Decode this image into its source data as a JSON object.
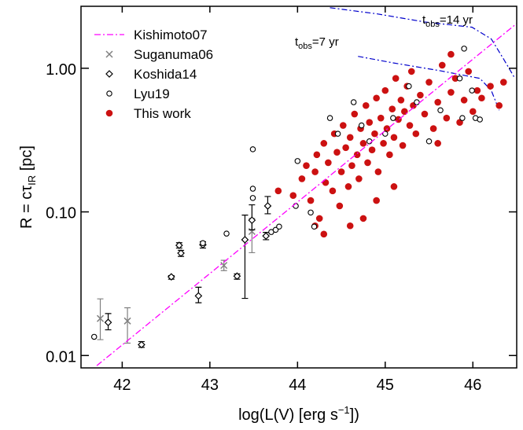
{
  "chart_data": {
    "type": "scatter",
    "xlabel": [
      "log(L(V) [erg s",
      "−1",
      "])"
    ],
    "ylabel": [
      "R = cτ",
      "IR",
      " [pc]"
    ],
    "xlim": [
      41.53,
      46.5
    ],
    "ylim": [
      0.0082,
      2.7
    ],
    "yscale": "log",
    "xticks": [
      42,
      43,
      44,
      45,
      46
    ],
    "yticks": [
      {
        "value": 0.01,
        "label": "0.01"
      },
      {
        "value": 0.1,
        "label": "0.10"
      },
      {
        "value": 1,
        "label": "1.00"
      }
    ],
    "legend": "upper left",
    "annotations": [
      {
        "parts": [
          "t",
          "obs",
          "=7 yr"
        ]
      },
      {
        "parts": [
          "t",
          "obs",
          "=14 yr"
        ]
      }
    ],
    "series": [
      {
        "name": "Kishimoto07",
        "marker": "line",
        "color": "#ff00ff",
        "x": [
          41.71,
          46.5
        ],
        "values": [
          0.0085,
          2.05
        ]
      },
      {
        "name": "Suganuma06",
        "marker": "x",
        "color": "#808080",
        "x": [
          41.75,
          42.06,
          43.16,
          43.48
        ],
        "values": [
          0.0181,
          0.0174,
          0.0424,
          0.073
        ],
        "lower": [
          0.0129,
          0.0122,
          0.039,
          0.052
        ],
        "upper": [
          0.0248,
          0.0215,
          0.046,
          0.09
        ]
      },
      {
        "name": "Koshida14",
        "marker": "diamond",
        "color": "#000000",
        "x": [
          41.84,
          42.22,
          42.56,
          42.65,
          42.67,
          42.87,
          42.92,
          43.31,
          43.48,
          43.66,
          43.64,
          43.4
        ],
        "values": [
          0.017,
          0.0119,
          0.0353,
          0.0585,
          0.0516,
          0.026,
          0.059,
          0.0357,
          0.0875,
          0.11,
          0.068,
          0.064
        ],
        "lower": [
          0.0151,
          0.0114,
          0.034,
          0.056,
          0.049,
          0.0233,
          0.056,
          0.034,
          0.075,
          0.097,
          0.064,
          0.025
        ],
        "upper": [
          0.0196,
          0.0125,
          0.036,
          0.061,
          0.054,
          0.0299,
          0.062,
          0.037,
          0.112,
          0.128,
          0.072,
          0.095
        ]
      },
      {
        "name": "Lyu19",
        "marker": "circle",
        "color": "#000000",
        "x": [
          41.68,
          42.92,
          43.19,
          43.49,
          43.49,
          43.49,
          43.7,
          43.75,
          43.79,
          43.98,
          44.0,
          44.15,
          44.19,
          44.37,
          44.46,
          44.64,
          44.73,
          44.82,
          45.0,
          45.09,
          45.27,
          45.36,
          45.5,
          45.63,
          45.85,
          45.9,
          45.99,
          46.03,
          46.08,
          45.88
        ],
        "values": [
          0.0135,
          0.0606,
          0.0706,
          0.273,
          0.145,
          0.125,
          0.0724,
          0.075,
          0.079,
          0.11,
          0.226,
          0.099,
          0.079,
          0.45,
          0.35,
          0.58,
          0.4,
          0.31,
          0.35,
          0.45,
          0.75,
          0.58,
          0.31,
          0.51,
          0.85,
          1.37,
          0.7,
          0.45,
          0.44,
          0.45
        ]
      },
      {
        "name": "This work",
        "marker": "dot",
        "color": "#cc1111",
        "x": [
          43.95,
          44.05,
          44.1,
          44.15,
          44.2,
          44.22,
          44.25,
          44.3,
          44.32,
          44.35,
          44.4,
          44.42,
          44.45,
          44.48,
          44.5,
          44.52,
          44.55,
          44.58,
          44.6,
          44.62,
          44.65,
          44.68,
          44.7,
          44.72,
          44.75,
          44.78,
          44.8,
          44.82,
          44.85,
          44.88,
          44.9,
          44.92,
          44.95,
          44.98,
          45.0,
          45.02,
          45.05,
          45.08,
          45.1,
          45.12,
          45.15,
          45.18,
          45.2,
          45.22,
          45.25,
          45.28,
          45.3,
          45.32,
          45.35,
          45.4,
          45.45,
          45.5,
          45.55,
          45.6,
          45.65,
          45.7,
          45.75,
          45.8,
          45.85,
          45.9,
          45.95,
          46.0,
          46.05,
          46.1,
          46.2,
          46.3,
          46.35,
          44.6,
          44.3,
          44.9,
          45.1,
          44.75,
          43.78,
          44.2,
          45.6,
          45.75
        ],
        "values": [
          0.13,
          0.17,
          0.21,
          0.12,
          0.19,
          0.25,
          0.09,
          0.3,
          0.16,
          0.22,
          0.14,
          0.35,
          0.26,
          0.11,
          0.19,
          0.4,
          0.28,
          0.15,
          0.33,
          0.21,
          0.48,
          0.25,
          0.17,
          0.38,
          0.3,
          0.55,
          0.22,
          0.42,
          0.27,
          0.35,
          0.62,
          0.19,
          0.45,
          0.3,
          0.7,
          0.38,
          0.25,
          0.52,
          0.33,
          0.85,
          0.44,
          0.6,
          0.29,
          0.5,
          0.75,
          0.4,
          0.95,
          0.55,
          0.35,
          0.65,
          0.48,
          0.8,
          0.38,
          0.58,
          1.05,
          0.45,
          0.68,
          0.85,
          0.42,
          0.6,
          0.95,
          0.5,
          0.7,
          0.62,
          0.75,
          0.55,
          0.8,
          0.08,
          0.07,
          0.12,
          0.15,
          0.09,
          0.14,
          0.08,
          0.3,
          1.25
        ]
      }
    ],
    "curves": [
      {
        "color": "#0000cc",
        "x": [
          44.69,
          45.09,
          45.63,
          46.08,
          46.21,
          46.3
        ],
        "values": [
          1.21,
          1.09,
          0.96,
          0.85,
          0.7,
          0.51
        ]
      },
      {
        "color": "#0000cc",
        "x": [
          44.37,
          44.91,
          45.45,
          45.99,
          46.21,
          46.35,
          46.48
        ],
        "values": [
          2.64,
          2.39,
          2.1,
          1.93,
          1.6,
          1.16,
          0.85
        ]
      }
    ]
  }
}
